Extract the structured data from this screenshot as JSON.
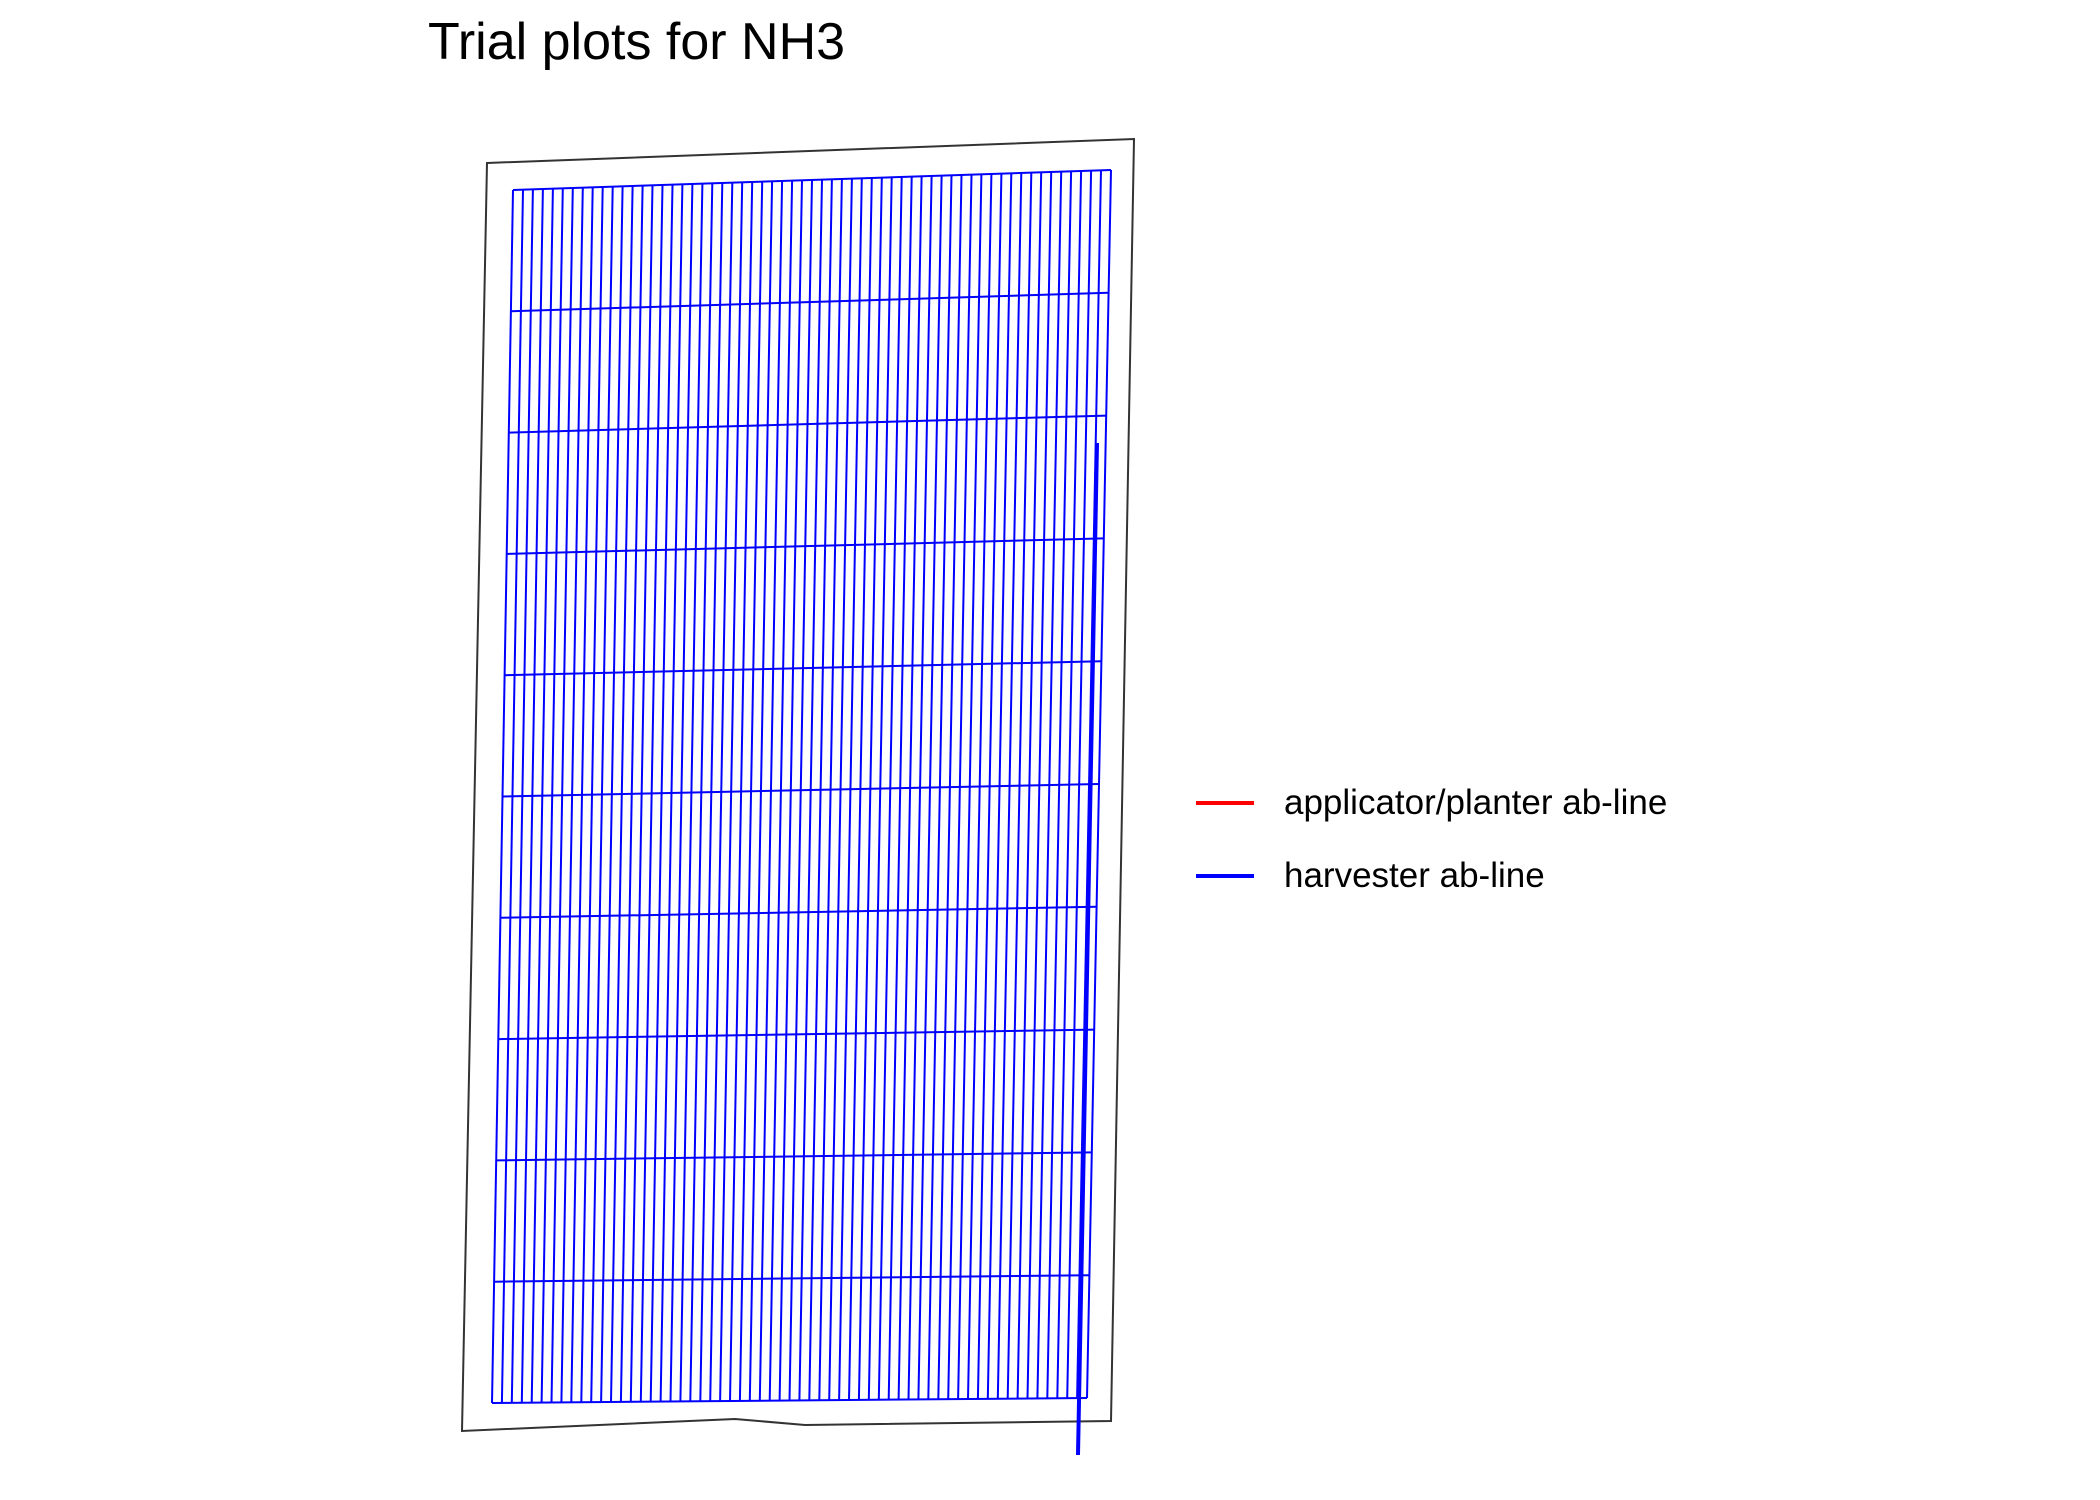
{
  "title": "Trial plots for NH3",
  "legend": {
    "items": [
      {
        "label": "applicator/planter ab-line",
        "color": "#ff0000"
      },
      {
        "label": "harvester ab-line",
        "color": "#0000ff"
      }
    ]
  },
  "map": {
    "plot_grid": {
      "columns": 60,
      "rows": 10,
      "color": "#0000ff"
    },
    "field_boundary_color": "#333333",
    "harvester_abline_color": "#0000ff"
  }
}
